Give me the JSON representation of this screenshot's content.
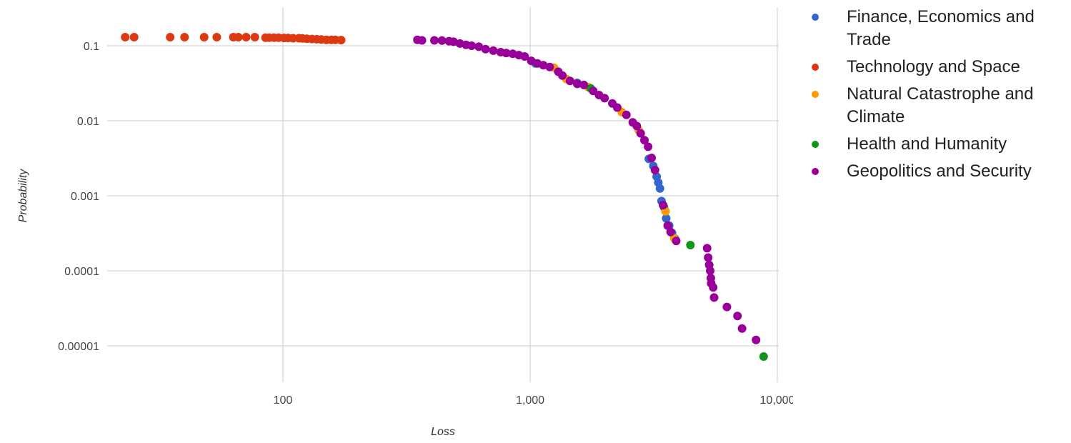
{
  "chart_data": {
    "type": "scatter",
    "xlabel": "Loss",
    "ylabel": "Probability",
    "x_scale": "log",
    "y_scale": "log",
    "xlim": [
      20,
      10000
    ],
    "ylim": [
      3e-06,
      0.3
    ],
    "x_ticks": [
      {
        "value": 100,
        "label": "100"
      },
      {
        "value": 1000,
        "label": "1,000"
      },
      {
        "value": 10000,
        "label": "10,000"
      }
    ],
    "y_ticks": [
      {
        "value": 0.1,
        "label": "0.1"
      },
      {
        "value": 0.01,
        "label": "0.01"
      },
      {
        "value": 0.001,
        "label": "0.001"
      },
      {
        "value": 0.0001,
        "label": "0.0001"
      },
      {
        "value": 1e-05,
        "label": "0.00001"
      }
    ],
    "grid": true,
    "legend_position": "right",
    "series": [
      {
        "name": "Finance, Economics and Trade",
        "color": "#3366cc",
        "points": [
          [
            3020,
            0.0031
          ],
          [
            3150,
            0.0025
          ],
          [
            3250,
            0.0018
          ],
          [
            3300,
            0.0015
          ],
          [
            3350,
            0.00125
          ],
          [
            3400,
            0.00085
          ],
          [
            3480,
            0.0007
          ],
          [
            3550,
            0.0005
          ],
          [
            3650,
            0.0004
          ],
          [
            3750,
            0.00032
          ],
          [
            3850,
            0.00027
          ],
          [
            1050,
            0.058
          ],
          [
            1550,
            0.032
          ]
        ]
      },
      {
        "name": "Technology and Space",
        "color": "#dc3912",
        "points": [
          [
            23,
            0.13
          ],
          [
            25,
            0.13
          ],
          [
            35,
            0.13
          ],
          [
            40,
            0.13
          ],
          [
            48,
            0.13
          ],
          [
            54,
            0.13
          ],
          [
            63,
            0.13
          ],
          [
            66,
            0.13
          ],
          [
            71,
            0.13
          ],
          [
            77,
            0.13
          ],
          [
            85,
            0.128
          ],
          [
            88,
            0.128
          ],
          [
            92,
            0.128
          ],
          [
            96,
            0.128
          ],
          [
            101,
            0.127
          ],
          [
            105,
            0.127
          ],
          [
            110,
            0.126
          ],
          [
            116,
            0.126
          ],
          [
            120,
            0.125
          ],
          [
            125,
            0.124
          ],
          [
            131,
            0.123
          ],
          [
            137,
            0.122
          ],
          [
            143,
            0.121
          ],
          [
            150,
            0.12
          ],
          [
            157,
            0.12
          ],
          [
            163,
            0.12
          ],
          [
            172,
            0.119
          ]
        ]
      },
      {
        "name": "Natural Catastrophe and Climate",
        "color": "#ff9900",
        "points": [
          [
            1250,
            0.051
          ],
          [
            1400,
            0.036
          ],
          [
            1720,
            0.028
          ],
          [
            2350,
            0.013
          ],
          [
            2750,
            0.0075
          ],
          [
            3530,
            0.00062
          ],
          [
            3830,
            0.00027
          ]
        ]
      },
      {
        "name": "Health and Humanity",
        "color": "#109618",
        "points": [
          [
            1760,
            0.027
          ],
          [
            4450,
            0.00022
          ],
          [
            8800,
            7.2e-06
          ]
        ]
      },
      {
        "name": "Geopolitics and Security",
        "color": "#990099",
        "points": [
          [
            350,
            0.12
          ],
          [
            365,
            0.118
          ],
          [
            410,
            0.118
          ],
          [
            440,
            0.117
          ],
          [
            470,
            0.115
          ],
          [
            490,
            0.113
          ],
          [
            520,
            0.107
          ],
          [
            550,
            0.103
          ],
          [
            580,
            0.1
          ],
          [
            620,
            0.097
          ],
          [
            660,
            0.09
          ],
          [
            710,
            0.086
          ],
          [
            760,
            0.082
          ],
          [
            800,
            0.08
          ],
          [
            850,
            0.078
          ],
          [
            900,
            0.075
          ],
          [
            950,
            0.072
          ],
          [
            1010,
            0.063
          ],
          [
            1070,
            0.058
          ],
          [
            1130,
            0.055
          ],
          [
            1200,
            0.052
          ],
          [
            1300,
            0.045
          ],
          [
            1350,
            0.04
          ],
          [
            1450,
            0.034
          ],
          [
            1550,
            0.031
          ],
          [
            1650,
            0.03
          ],
          [
            1800,
            0.025
          ],
          [
            1900,
            0.022
          ],
          [
            2000,
            0.02
          ],
          [
            2150,
            0.017
          ],
          [
            2250,
            0.015
          ],
          [
            2450,
            0.012
          ],
          [
            2600,
            0.0095
          ],
          [
            2700,
            0.0085
          ],
          [
            2800,
            0.0068
          ],
          [
            2900,
            0.0055
          ],
          [
            3000,
            0.0045
          ],
          [
            3100,
            0.0032
          ],
          [
            3200,
            0.0022
          ],
          [
            3450,
            0.00075
          ],
          [
            3600,
            0.0004
          ],
          [
            3700,
            0.00033
          ],
          [
            3900,
            0.00025
          ],
          [
            5200,
            0.0002
          ],
          [
            5250,
            0.00015
          ],
          [
            5300,
            0.00012
          ],
          [
            5350,
            0.0001
          ],
          [
            5380,
            8e-05
          ],
          [
            5400,
            6.8e-05
          ],
          [
            5500,
            6e-05
          ],
          [
            5550,
            4.4e-05
          ],
          [
            6250,
            3.3e-05
          ],
          [
            6900,
            2.5e-05
          ],
          [
            7200,
            1.7e-05
          ],
          [
            8200,
            1.2e-05
          ]
        ]
      }
    ]
  }
}
